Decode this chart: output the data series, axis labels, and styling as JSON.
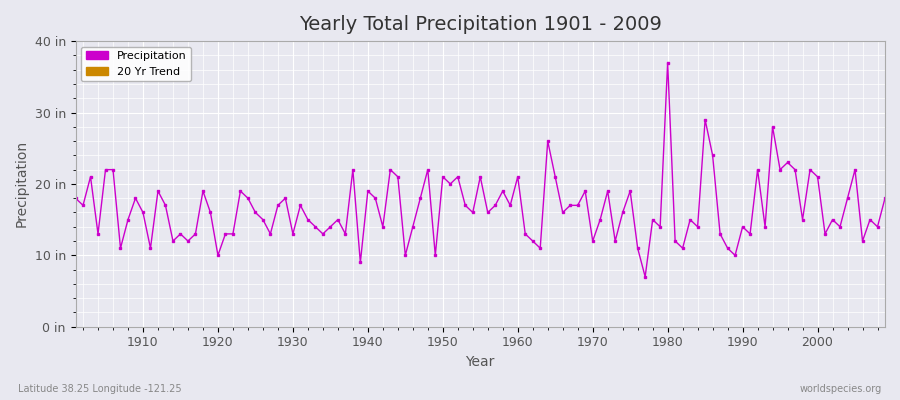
{
  "title": "Yearly Total Precipitation 1901 - 2009",
  "xlabel": "Year",
  "ylabel": "Precipitation",
  "lat_lon_label": "Latitude 38.25 Longitude -121.25",
  "watermark": "worldspecies.org",
  "line_color": "#cc00cc",
  "trend_color": "#cc8800",
  "bg_color": "#e8e8f0",
  "plot_bg_color": "#e8e8f0",
  "grid_color": "#ffffff",
  "ylim": [
    0,
    40
  ],
  "ytick_labels": [
    "0 in",
    "10 in",
    "20 in",
    "30 in",
    "40 in"
  ],
  "ytick_values": [
    0,
    10,
    20,
    30,
    40
  ],
  "precip": [
    18,
    17,
    21,
    13,
    22,
    22,
    11,
    15,
    18,
    16,
    11,
    19,
    17,
    12,
    13,
    12,
    13,
    19,
    16,
    10,
    13,
    13,
    19,
    18,
    16,
    15,
    13,
    17,
    18,
    13,
    17,
    15,
    14,
    13,
    14,
    15,
    13,
    22,
    9,
    19,
    18,
    14,
    22,
    21,
    10,
    14,
    18,
    22,
    10,
    21,
    20,
    21,
    17,
    16,
    21,
    16,
    17,
    19,
    17,
    21,
    13,
    12,
    11,
    26,
    21,
    16,
    17,
    17,
    19,
    12,
    15,
    19,
    12,
    16,
    19,
    11,
    7,
    15,
    14,
    37,
    12,
    11,
    15,
    14,
    29,
    24,
    13,
    11,
    10,
    14,
    13,
    22,
    14,
    28,
    22,
    23,
    22,
    15,
    22,
    21,
    13,
    15,
    14,
    18,
    22,
    12,
    15,
    14,
    18
  ]
}
